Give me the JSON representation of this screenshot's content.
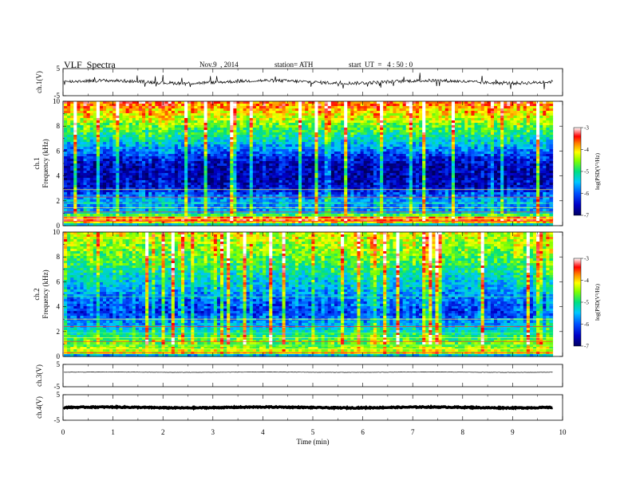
{
  "header": {
    "title": "VLF  Spectra",
    "date": "Nov.9  , 2014",
    "station": "station= ATH",
    "start_ut": "start  UT  =   4 : 50 : 0"
  },
  "chart_data": [
    {
      "type": "line",
      "panel": "ch1_waveform",
      "ylabel": "ch.1(V)",
      "ylim": [
        -5,
        5
      ],
      "yticks": [
        "5",
        "-5"
      ],
      "xlim": [
        0,
        10
      ],
      "series_color": "#000000",
      "description_values": {
        "baseline_v": 0.1,
        "noise_amplitude_v": 1.2,
        "data_end_min": 9.8
      }
    },
    {
      "type": "heatmap",
      "panel": "ch1_spectrogram",
      "ylabel_lines": [
        "ch.1",
        "Frequency  (kHz)"
      ],
      "ylim": [
        0,
        10
      ],
      "yticks": [
        "0",
        "2",
        "4",
        "6",
        "8",
        "10"
      ],
      "xlim": [
        0,
        10
      ],
      "data_end_min": 9.8,
      "colorbar": {
        "label": "log(PSD(V²/Hz)",
        "range": [
          -7,
          -3
        ],
        "ticks": [
          "-3",
          "-4",
          "-5",
          "-6",
          "-7"
        ]
      },
      "frequency_profile": [
        {
          "f_khz": 0.0,
          "logpsd": -6.0
        },
        {
          "f_khz": 0.3,
          "logpsd": -4.0
        },
        {
          "f_khz": 0.6,
          "logpsd": -3.3
        },
        {
          "f_khz": 1.0,
          "logpsd": -5.5
        },
        {
          "f_khz": 1.5,
          "logpsd": -5.8
        },
        {
          "f_khz": 2.0,
          "logpsd": -5.6
        },
        {
          "f_khz": 3.0,
          "logpsd": -6.5
        },
        {
          "f_khz": 4.0,
          "logpsd": -6.7
        },
        {
          "f_khz": 5.0,
          "logpsd": -6.6
        },
        {
          "f_khz": 5.5,
          "logpsd": -6.3
        },
        {
          "f_khz": 6.5,
          "logpsd": -5.6
        },
        {
          "f_khz": 7.5,
          "logpsd": -5.0
        },
        {
          "f_khz": 8.5,
          "logpsd": -4.4
        },
        {
          "f_khz": 10.0,
          "logpsd": -3.6
        }
      ]
    },
    {
      "type": "heatmap",
      "panel": "ch2_spectrogram",
      "ylabel_lines": [
        "ch.2",
        "Frequency  (kHz)"
      ],
      "ylim": [
        0,
        10
      ],
      "yticks": [
        "0",
        "2",
        "4",
        "6",
        "8",
        "10"
      ],
      "xlim": [
        0,
        10
      ],
      "data_end_min": 9.8,
      "colorbar": {
        "label": "log(PSD(V²/Hz)",
        "range": [
          -7,
          -3
        ],
        "ticks": [
          "-3",
          "-4",
          "-5",
          "-6",
          "-7"
        ]
      },
      "frequency_profile": [
        {
          "f_khz": 0.0,
          "logpsd": -6.2
        },
        {
          "f_khz": 0.3,
          "logpsd": -4.2
        },
        {
          "f_khz": 0.8,
          "logpsd": -4.6
        },
        {
          "f_khz": 1.5,
          "logpsd": -4.9
        },
        {
          "f_khz": 2.5,
          "logpsd": -5.6
        },
        {
          "f_khz": 3.5,
          "logpsd": -6.2
        },
        {
          "f_khz": 4.5,
          "logpsd": -6.0
        },
        {
          "f_khz": 5.5,
          "logpsd": -5.6
        },
        {
          "f_khz": 6.5,
          "logpsd": -5.3
        },
        {
          "f_khz": 7.5,
          "logpsd": -4.9
        },
        {
          "f_khz": 8.5,
          "logpsd": -4.6
        },
        {
          "f_khz": 10.0,
          "logpsd": -4.3
        }
      ]
    },
    {
      "type": "line",
      "panel": "ch3_waveform",
      "ylabel": "ch.3(V)",
      "ylim": [
        -5,
        5
      ],
      "yticks": [
        "5",
        "-5"
      ],
      "xlim": [
        0,
        10
      ],
      "description_values": {
        "baseline_v": 1.5,
        "noise_amplitude_v": 0.15,
        "data_end_min": 9.8
      }
    },
    {
      "type": "line",
      "panel": "ch4_waveform",
      "ylabel": "ch.4(V)",
      "ylim": [
        -5,
        5
      ],
      "yticks": [
        "5",
        "-5"
      ],
      "xlim": [
        0,
        10
      ],
      "description_values": {
        "baseline_v": 0.0,
        "noise_amplitude_v": 0.4,
        "data_end_min": 9.8
      }
    }
  ],
  "xaxis": {
    "label": "Time  (min)",
    "range": [
      0,
      10
    ],
    "ticks": [
      "0",
      "1",
      "2",
      "3",
      "4",
      "5",
      "6",
      "7",
      "8",
      "9",
      "10"
    ]
  }
}
